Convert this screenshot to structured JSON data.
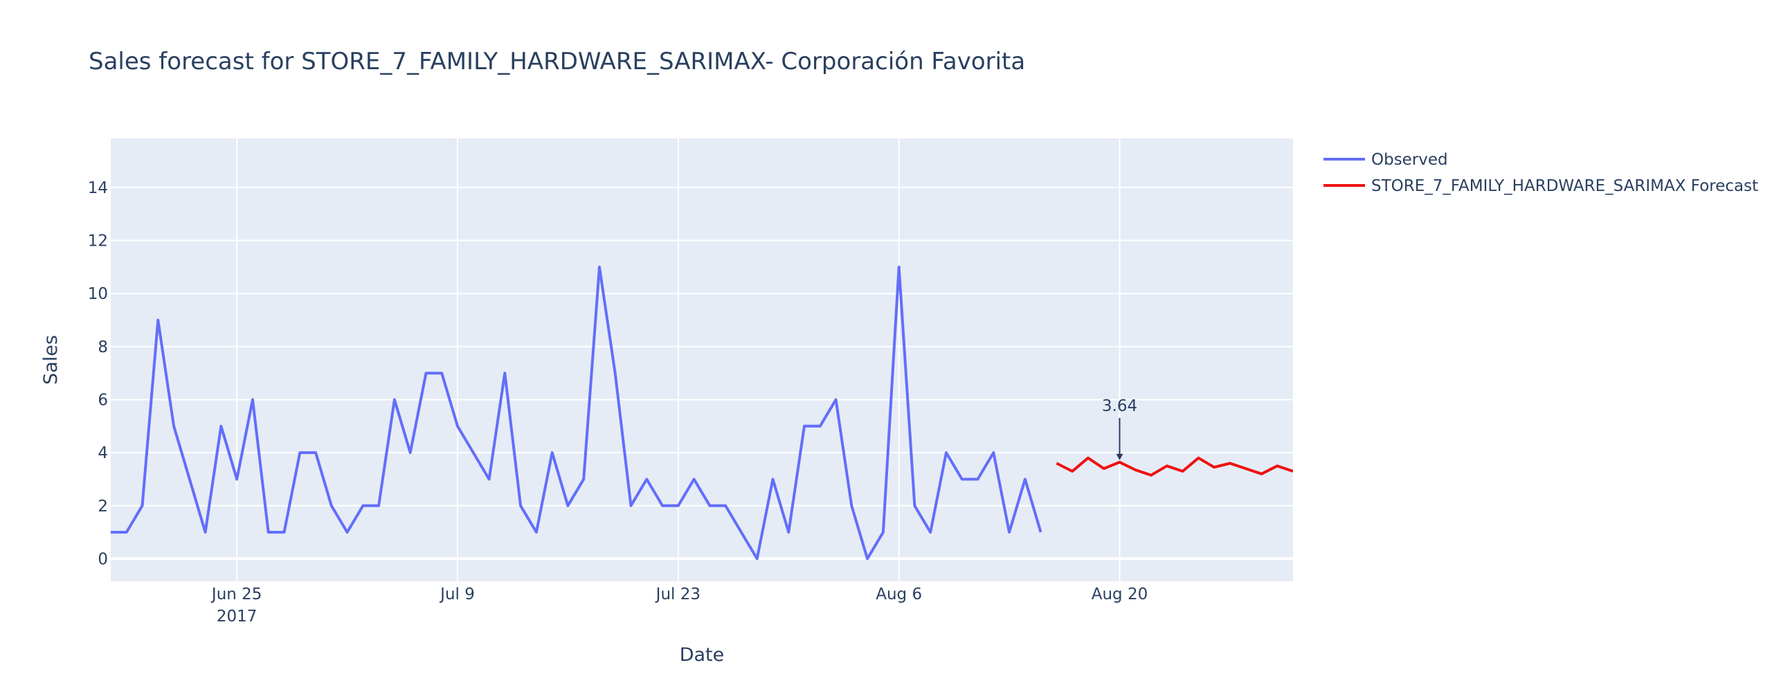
{
  "chart_data": {
    "type": "line",
    "title": "Sales forecast for STORE_7_FAMILY_HARDWARE_SARIMAX- Corporación Favorita",
    "xlabel": "Date",
    "ylabel": "Sales",
    "xlim": [
      "2017-06-17",
      "2017-08-31"
    ],
    "ylim": [
      -0.85,
      15.85
    ],
    "yticks": [
      0,
      2,
      4,
      6,
      8,
      10,
      12,
      14
    ],
    "xticks": [
      {
        "date": "2017-06-25",
        "label": "Jun 25",
        "sublabel": "2017"
      },
      {
        "date": "2017-07-09",
        "label": "Jul 9"
      },
      {
        "date": "2017-07-23",
        "label": "Jul 23"
      },
      {
        "date": "2017-08-06",
        "label": "Aug 6"
      },
      {
        "date": "2017-08-20",
        "label": "Aug 20"
      }
    ],
    "grid": true,
    "legend_position": "top-right outside",
    "series": [
      {
        "name": "Observed",
        "color": "#636efa",
        "start": "2017-06-17",
        "values": [
          1,
          1,
          2,
          9,
          5,
          3,
          1,
          5,
          3,
          6,
          1,
          1,
          4,
          4,
          2,
          1,
          2,
          2,
          6,
          4,
          7,
          7,
          5,
          4,
          3,
          7,
          2,
          1,
          4,
          2,
          3,
          11,
          7,
          2,
          3,
          2,
          2,
          3,
          2,
          2,
          1,
          0,
          3,
          1,
          5,
          5,
          6,
          2,
          0,
          1,
          11,
          2,
          1,
          4,
          3,
          3,
          4,
          1,
          3,
          1
        ]
      },
      {
        "name": "STORE_7_FAMILY_HARDWARE_SARIMAX Forecast",
        "color": "#ee1111",
        "start": "2017-08-16",
        "values": [
          3.6,
          3.3,
          3.8,
          3.4,
          3.64,
          3.35,
          3.15,
          3.5,
          3.3,
          3.8,
          3.45,
          3.6,
          3.4,
          3.2,
          3.5,
          3.3
        ]
      }
    ],
    "annotations": [
      {
        "date": "2017-08-20",
        "y": 3.64,
        "text": "3.64"
      }
    ]
  }
}
